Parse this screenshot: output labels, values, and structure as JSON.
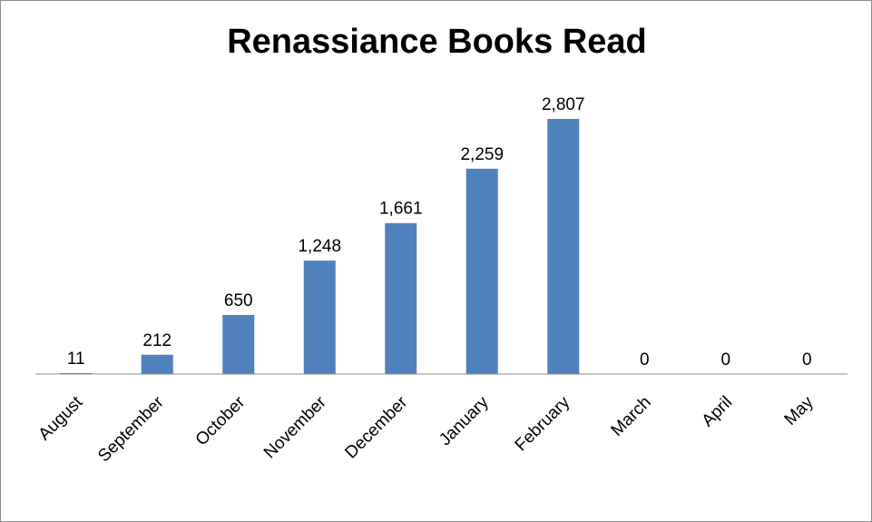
{
  "chart_data": {
    "type": "bar",
    "title": "Renassiance Books Read",
    "categories": [
      "August",
      "September",
      "October",
      "November",
      "December",
      "January",
      "February",
      "March",
      "April",
      "May"
    ],
    "values": [
      11,
      212,
      650,
      1248,
      1661,
      2259,
      2807,
      0,
      0,
      0
    ],
    "data_labels": [
      "11",
      "212",
      "650",
      "1,248",
      "1,661",
      "2,259",
      "2,807",
      "0",
      "0",
      "0"
    ],
    "xlabel": "",
    "ylabel": "",
    "ylim": [
      0,
      2807
    ],
    "grid": false,
    "legend": "none",
    "bar_color": "#4f81bd",
    "axis_color": "#8c8c8c"
  }
}
